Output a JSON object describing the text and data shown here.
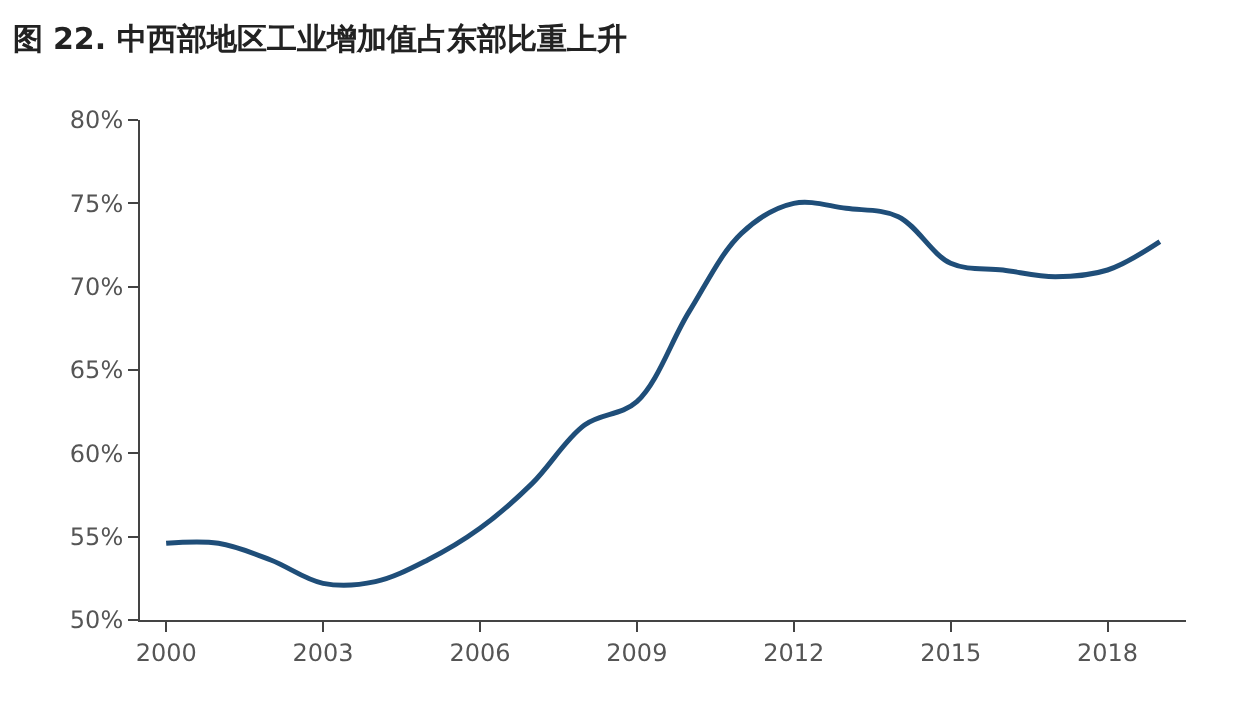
{
  "chart_data": {
    "type": "line",
    "title": "图 22. 中西部地区工业增加值占东部比重上升",
    "categories": [
      "2000",
      null,
      null,
      "2003",
      null,
      null,
      "2006",
      null,
      null,
      "2009",
      null,
      null,
      "2012",
      null,
      null,
      "2015",
      null,
      null,
      "2018",
      null
    ],
    "series": [
      {
        "color": "#1f4e79",
        "values": [
          54.6,
          54.6,
          53.6,
          52.2,
          52.3,
          53.6,
          55.5,
          58.2,
          61.7,
          63.1,
          68.5,
          73.2,
          75.0,
          74.7,
          74.2,
          71.4,
          71.0,
          70.6,
          71.0,
          72.7
        ]
      }
    ],
    "ylim": [
      50,
      80
    ],
    "yticks": [
      {
        "value": 50,
        "label": "50%"
      },
      {
        "value": 55,
        "label": "55%"
      },
      {
        "value": 60,
        "label": "60%"
      },
      {
        "value": 65,
        "label": "65%"
      },
      {
        "value": 70,
        "label": "70%"
      },
      {
        "value": 75,
        "label": "75%"
      },
      {
        "value": 80,
        "label": "80%"
      }
    ],
    "line_style": "solid"
  }
}
